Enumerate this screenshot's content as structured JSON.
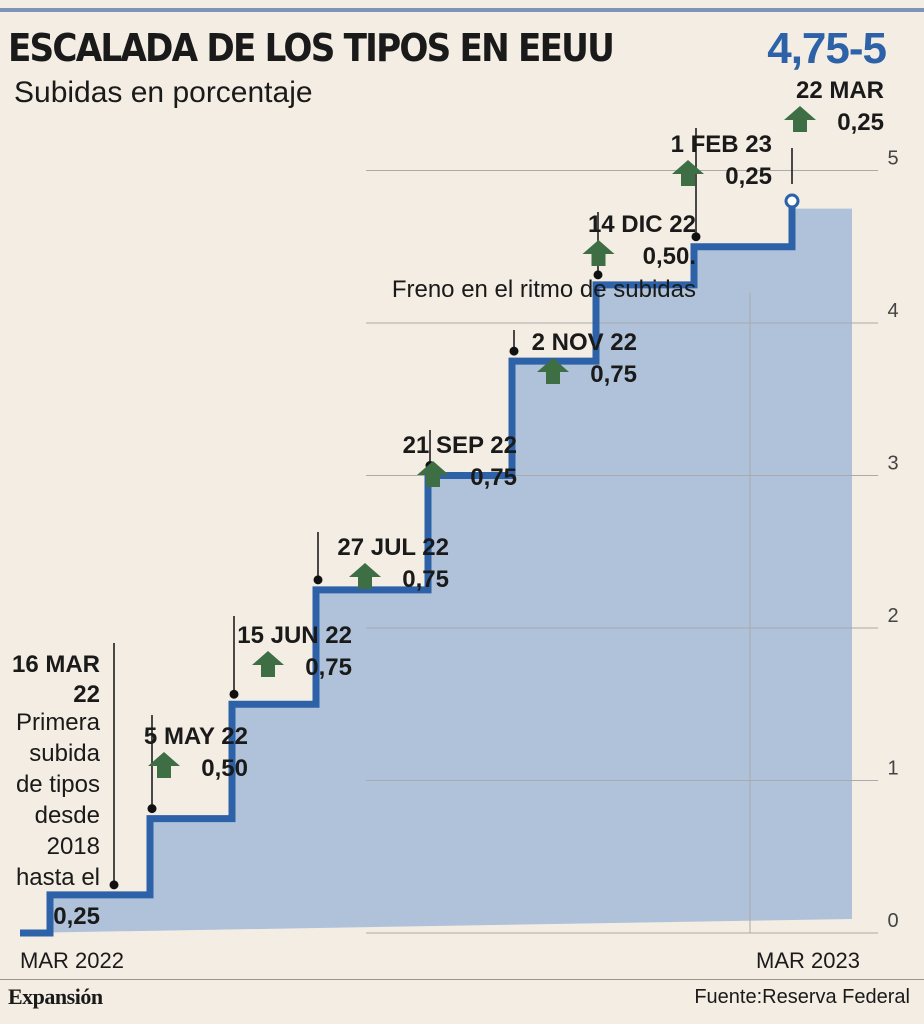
{
  "header": {
    "title": "ESCALADA DE LOS TIPOS EN EEUU",
    "subtitle": "Subidas en porcentaje",
    "headline": "4,75-5"
  },
  "footer": {
    "brand": "Expansión",
    "source": "Fuente:Reserva Federal"
  },
  "colors": {
    "line": "#2d62a8",
    "area": "#afc2da",
    "arrow": "#3d6e44",
    "grid": "#aaaaaa",
    "background": "#f4ede3"
  },
  "chart_data": {
    "type": "area",
    "title": "ESCALADA DE LOS TIPOS EN EEUU",
    "ylabel": "Subidas en porcentaje",
    "ylim": [
      0,
      5
    ],
    "yticks": [
      "0",
      "1",
      "2",
      "3",
      "4",
      "5"
    ],
    "xlabels": [
      {
        "label": "MAR 2022",
        "day": 0
      },
      {
        "label": "MAR 2023",
        "day": 365
      }
    ],
    "series": [
      {
        "name": "Tipos Reserva Federal",
        "steps": [
          {
            "day": 0,
            "value": 0
          },
          {
            "day": 15,
            "value": 0.25
          },
          {
            "day": 65,
            "value": 0.75
          },
          {
            "day": 106,
            "value": 1.5
          },
          {
            "day": 148,
            "value": 2.25
          },
          {
            "day": 204,
            "value": 3.0
          },
          {
            "day": 246,
            "value": 3.75
          },
          {
            "day": 288,
            "value": 4.25
          },
          {
            "day": 337,
            "value": 4.5
          },
          {
            "day": 386,
            "value": 4.75
          }
        ],
        "end": {
          "day": 386,
          "value": 4.75
        }
      }
    ],
    "annotations": [
      {
        "date": "16 MAR 22",
        "date_lines": [
          "16 MAR",
          "22"
        ],
        "text_lines": [
          "Primera",
          "subida",
          "de tipos",
          "desde",
          "2018",
          "hasta el"
        ],
        "value": "0,25",
        "day": 15,
        "y": 0.25
      },
      {
        "date": "5 MAY 22",
        "value": "0,50",
        "day": 65,
        "y": 0.75
      },
      {
        "date": "15 JUN 22",
        "value": "0,75",
        "day": 106,
        "y": 1.5
      },
      {
        "date": "27 JUL 22",
        "value": "0,75",
        "day": 148,
        "y": 2.25
      },
      {
        "date": "21 SEP 22",
        "value": "0,75",
        "day": 204,
        "y": 3.0
      },
      {
        "date": "2 NOV 22",
        "value": "0,75",
        "day": 246,
        "y": 3.75
      },
      {
        "date": "14 DIC 22",
        "value": "0,50.",
        "note": "Freno en el ritmo de subidas",
        "day": 288,
        "y": 4.25
      },
      {
        "date": "1 FEB 23",
        "value": "0,25",
        "day": 337,
        "y": 4.5
      },
      {
        "date": "22 MAR",
        "value": "0,25",
        "day": 386,
        "y": 4.75
      }
    ]
  }
}
